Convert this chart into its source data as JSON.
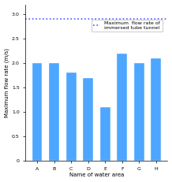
{
  "categories": [
    "A",
    "B",
    "C",
    "D",
    "E",
    "F",
    "G",
    "H"
  ],
  "values": [
    2.0,
    2.0,
    1.8,
    1.7,
    1.1,
    2.2,
    2.0,
    2.1
  ],
  "bar_color": "#4da6ff",
  "hline_value": 2.9,
  "hline_color": "#5555ff",
  "hline_style": "dotted",
  "legend_label": "Maximum  flow rate of\nimmersed tube tunnel",
  "xlabel": "Name of water area",
  "ylabel": "Maximum flow rate (m/s)",
  "ylim": [
    0,
    3.2
  ],
  "yticks": [
    0,
    0.5,
    1.0,
    1.5,
    2.0,
    2.5,
    3.0
  ],
  "title": "",
  "bar_width": 0.6,
  "background_color": "#ffffff"
}
